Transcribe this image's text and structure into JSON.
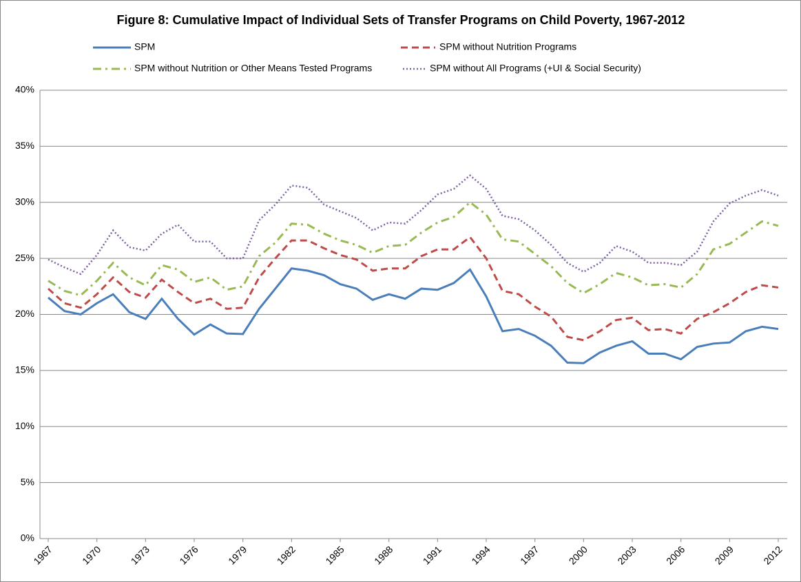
{
  "chart_data": {
    "type": "line",
    "title": "Figure 8: Cumulative Impact of Individual Sets of Transfer Programs on Child Poverty, 1967-2012",
    "x": [
      1967,
      1968,
      1969,
      1970,
      1971,
      1972,
      1973,
      1974,
      1975,
      1976,
      1977,
      1978,
      1979,
      1980,
      1981,
      1982,
      1983,
      1984,
      1985,
      1986,
      1987,
      1988,
      1989,
      1990,
      1991,
      1992,
      1993,
      1994,
      1995,
      1996,
      1997,
      1998,
      1999,
      2000,
      2001,
      2002,
      2003,
      2004,
      2005,
      2006,
      2007,
      2008,
      2009,
      2010,
      2011,
      2012
    ],
    "xlim": [
      1967,
      2012
    ],
    "xticks": [
      1967,
      1970,
      1973,
      1976,
      1979,
      1982,
      1985,
      1988,
      1991,
      1994,
      1997,
      2000,
      2003,
      2006,
      2009,
      2012
    ],
    "ylim": [
      0,
      40
    ],
    "yticks": [
      {
        "value": 0,
        "label": "0%"
      },
      {
        "value": 5,
        "label": "5%"
      },
      {
        "value": 10,
        "label": "10%"
      },
      {
        "value": 15,
        "label": "15%"
      },
      {
        "value": 20,
        "label": "20%"
      },
      {
        "value": 25,
        "label": "25%"
      },
      {
        "value": 30,
        "label": "30%"
      },
      {
        "value": 35,
        "label": "35%"
      },
      {
        "value": 40,
        "label": "40%"
      }
    ],
    "grid": true,
    "legend": "top",
    "series": [
      {
        "name": "SPM",
        "color": "#4a7ebb",
        "dash": "solid",
        "values": [
          21.5,
          20.3,
          20.0,
          21.0,
          21.8,
          20.2,
          19.6,
          21.4,
          19.6,
          18.2,
          19.1,
          18.3,
          18.25,
          20.5,
          22.3,
          24.1,
          23.9,
          23.5,
          22.7,
          22.3,
          21.3,
          21.8,
          21.4,
          22.3,
          22.2,
          22.8,
          24.0,
          21.6,
          18.5,
          18.7,
          18.1,
          17.2,
          15.7,
          15.65,
          16.6,
          17.2,
          17.6,
          16.5,
          16.5,
          16.0,
          17.1,
          17.4,
          17.5,
          18.5,
          18.9,
          18.7
        ]
      },
      {
        "name": "SPM without Nutrition Programs",
        "color": "#be4b48",
        "dash": "dashed",
        "values": [
          22.3,
          21.0,
          20.6,
          21.8,
          23.3,
          22.0,
          21.5,
          23.1,
          22.0,
          21.0,
          21.4,
          20.5,
          20.6,
          23.3,
          25.0,
          26.6,
          26.6,
          25.9,
          25.3,
          24.9,
          23.9,
          24.1,
          24.1,
          25.2,
          25.8,
          25.8,
          26.9,
          25.0,
          22.1,
          21.8,
          20.7,
          19.8,
          18.0,
          17.7,
          18.5,
          19.5,
          19.7,
          18.6,
          18.7,
          18.3,
          19.6,
          20.2,
          21.0,
          22.0,
          22.6,
          22.4
        ]
      },
      {
        "name": "SPM without Nutrition or Other Means Tested Programs",
        "color": "#98b954",
        "dash": "dashdot",
        "values": [
          23.0,
          22.1,
          21.7,
          23.0,
          24.6,
          23.3,
          22.6,
          24.4,
          24.0,
          22.9,
          23.3,
          22.2,
          22.5,
          25.2,
          26.4,
          28.1,
          28.0,
          27.2,
          26.6,
          26.2,
          25.5,
          26.1,
          26.2,
          27.3,
          28.2,
          28.7,
          30.0,
          28.9,
          26.7,
          26.5,
          25.4,
          24.3,
          22.8,
          21.9,
          22.7,
          23.7,
          23.3,
          22.6,
          22.7,
          22.4,
          23.6,
          25.8,
          26.3,
          27.3,
          28.3,
          27.9
        ]
      },
      {
        "name": "SPM without All Programs (+UI & Social Security)",
        "color": "#7d60a0",
        "dash": "dotted",
        "values": [
          24.9,
          24.2,
          23.6,
          25.3,
          27.5,
          26.0,
          25.7,
          27.2,
          28.0,
          26.5,
          26.5,
          25.0,
          25.0,
          28.4,
          29.8,
          31.5,
          31.3,
          29.8,
          29.2,
          28.6,
          27.5,
          28.2,
          28.1,
          29.3,
          30.7,
          31.2,
          32.4,
          31.2,
          28.8,
          28.5,
          27.5,
          26.2,
          24.6,
          23.8,
          24.6,
          26.1,
          25.6,
          24.6,
          24.6,
          24.4,
          25.6,
          28.3,
          29.9,
          30.6,
          31.1,
          30.6
        ]
      }
    ]
  }
}
